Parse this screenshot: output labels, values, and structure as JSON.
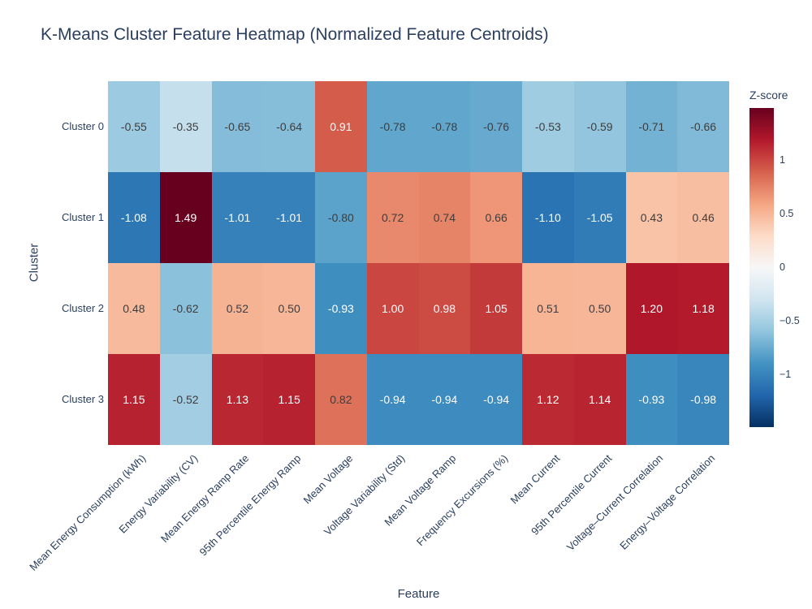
{
  "chart_data": {
    "type": "heatmap",
    "title": "K-Means Cluster Feature Heatmap (Normalized Feature Centroids)",
    "xlabel": "Feature",
    "ylabel": "Cluster",
    "x_categories": [
      "Mean Energy Consumption (kWh)",
      "Energy Variability (CV)",
      "Mean Energy Ramp Rate",
      "95th Percentile Energy Ramp",
      "Mean Voltage",
      "Voltage Variability (Std)",
      "Mean Voltage Ramp",
      "Frequency Excursions (%)",
      "Mean Current",
      "95th Percentile Current",
      "Voltage–Current Correlation",
      "Energy–Voltage Correlation"
    ],
    "y_categories": [
      "Cluster 0",
      "Cluster 1",
      "Cluster 2",
      "Cluster 3"
    ],
    "values": [
      [
        -0.55,
        -0.35,
        -0.65,
        -0.64,
        0.91,
        -0.78,
        -0.78,
        -0.76,
        -0.53,
        -0.59,
        -0.71,
        -0.66
      ],
      [
        -1.08,
        1.49,
        -1.01,
        -1.01,
        -0.8,
        0.72,
        0.74,
        0.66,
        -1.1,
        -1.05,
        0.43,
        0.46
      ],
      [
        0.48,
        -0.62,
        0.52,
        0.5,
        -0.93,
        1.0,
        0.98,
        1.05,
        0.51,
        0.5,
        1.2,
        1.18
      ],
      [
        1.15,
        -0.52,
        1.13,
        1.15,
        0.82,
        -0.94,
        -0.94,
        -0.94,
        1.12,
        1.14,
        -0.93,
        -0.98
      ]
    ],
    "value_decimals": 2,
    "zmin": -1.49,
    "zmax": 1.49,
    "grid_off": true,
    "colorscale": [
      [
        0.0,
        "#053061"
      ],
      [
        0.1,
        "#2166ac"
      ],
      [
        0.2,
        "#4393c3"
      ],
      [
        0.3,
        "#92c5de"
      ],
      [
        0.4,
        "#d1e5f0"
      ],
      [
        0.5,
        "#f7f7f7"
      ],
      [
        0.6,
        "#fddbc7"
      ],
      [
        0.7,
        "#f4a582"
      ],
      [
        0.8,
        "#d6604d"
      ],
      [
        0.9,
        "#b2182b"
      ],
      [
        1.0,
        "#67001f"
      ]
    ],
    "colorbar": {
      "title": "Z-score",
      "position": "right",
      "ticks": [
        {
          "label": "1",
          "value": 1
        },
        {
          "label": "0.5",
          "value": 0.5
        },
        {
          "label": "0",
          "value": 0
        },
        {
          "label": "−0.5",
          "value": -0.5
        },
        {
          "label": "−1",
          "value": -1
        }
      ]
    },
    "colors": {
      "label_color": "#2a3f5f",
      "cell_text_light_bg": "#3d3d3d",
      "cell_text_dark_bg": "#ffffff",
      "background": "#ffffff"
    }
  }
}
